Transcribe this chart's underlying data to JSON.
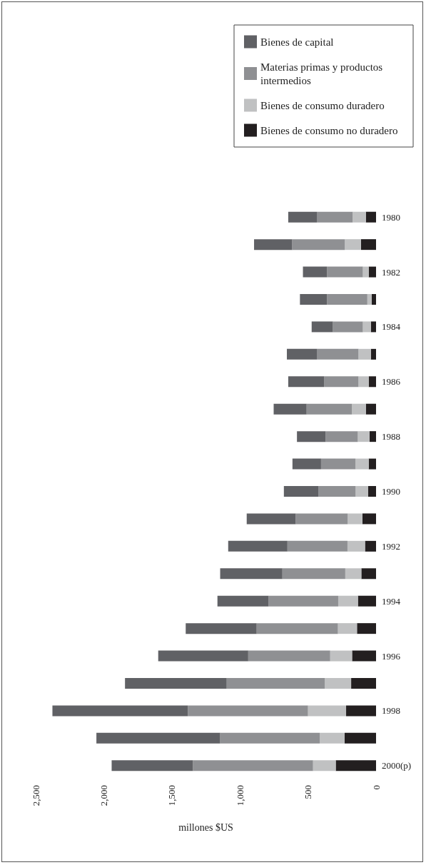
{
  "chart_data": {
    "type": "bar",
    "orientation": "horizontal",
    "stacked": true,
    "xlabel": "millones $US",
    "categories": [
      "1980",
      null,
      "1982",
      null,
      "1984",
      null,
      "1986",
      null,
      "1988",
      null,
      "1990",
      null,
      "1992",
      null,
      "1994",
      null,
      "1996",
      null,
      "1998",
      null,
      "2000(p)"
    ],
    "series": [
      {
        "name": "Bienes de consumo no duradero",
        "color": "#231f20",
        "values": [
          75,
          111,
          54,
          32,
          38,
          38,
          54,
          75,
          48,
          54,
          59,
          100,
          81,
          108,
          133,
          140,
          176,
          183,
          220,
          231,
          296
        ]
      },
      {
        "name": "Bienes de consumo duradero",
        "color": "#c0c1c2",
        "values": [
          97,
          118,
          43,
          32,
          59,
          91,
          75,
          102,
          86,
          97,
          91,
          108,
          129,
          118,
          145,
          140,
          161,
          194,
          280,
          183,
          167
        ]
      },
      {
        "name": "Materias primas y productos intermedios",
        "color": "#8f9093",
        "values": [
          263,
          387,
          263,
          296,
          220,
          306,
          253,
          333,
          237,
          253,
          274,
          382,
          441,
          462,
          511,
          597,
          602,
          720,
          882,
          731,
          882
        ]
      },
      {
        "name": "Bienes de capital",
        "color": "#606165",
        "values": [
          210,
          280,
          177,
          199,
          156,
          220,
          263,
          242,
          210,
          210,
          253,
          360,
          435,
          457,
          376,
          521,
          661,
          747,
          995,
          909,
          597
        ]
      }
    ],
    "xlim": [
      2500,
      0
    ],
    "xticks": [
      0,
      500,
      {
        "value": 1000,
        "label": "1,000"
      },
      {
        "value": 1500,
        "label": "1,500"
      },
      {
        "value": 2000,
        "label": "2,000"
      },
      {
        "value": 2500,
        "label": "2,500"
      }
    ],
    "grid": false,
    "legend": "top right"
  }
}
